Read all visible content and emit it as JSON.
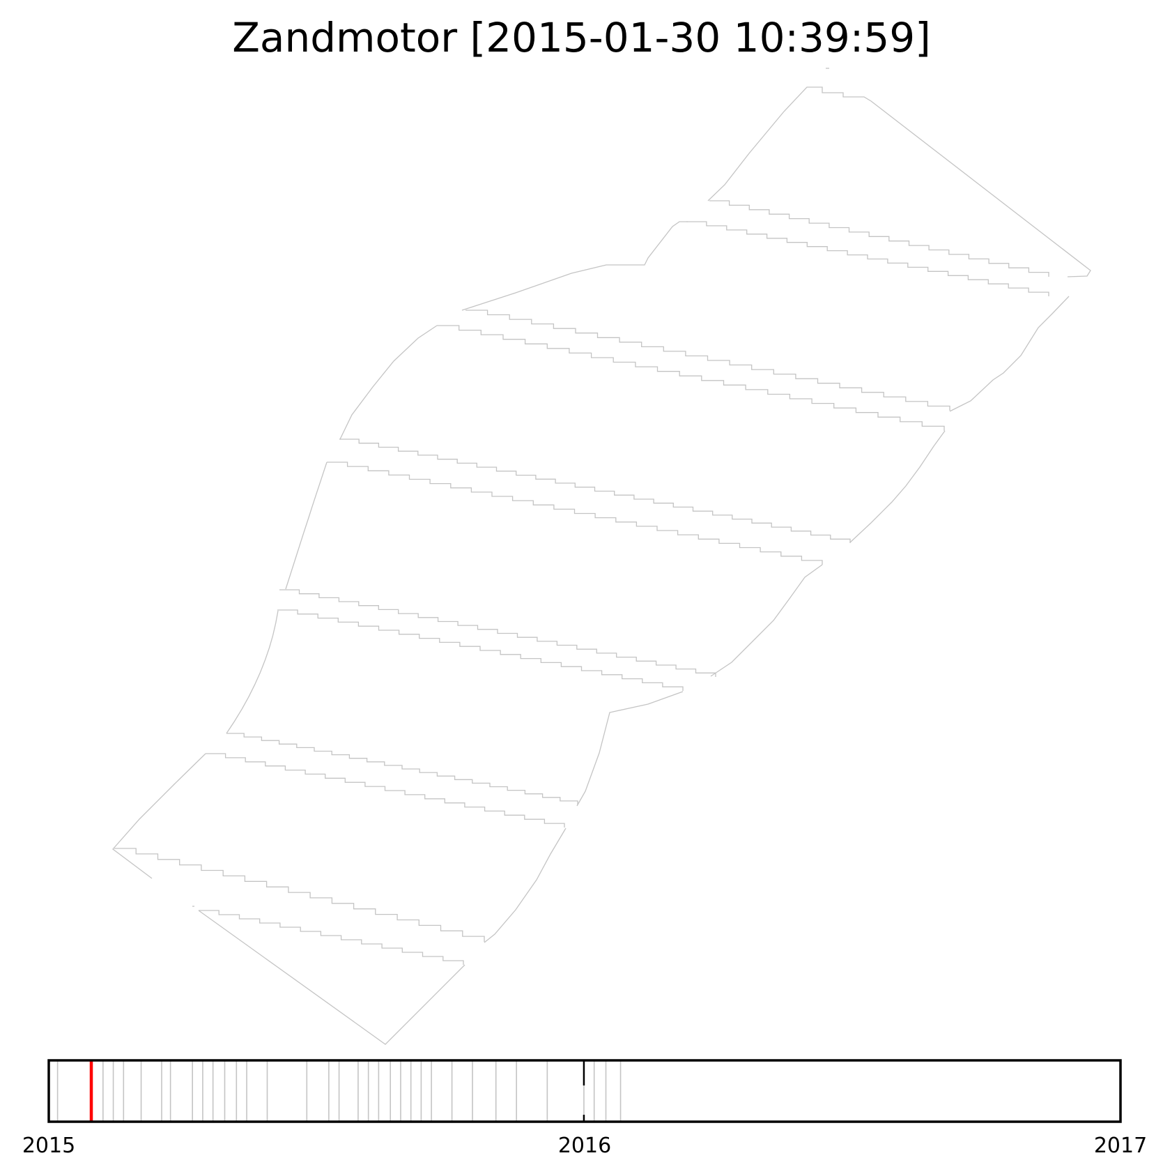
{
  "title": "Zandmotor [2015-01-30 10:39:59]",
  "colors": {
    "survey_track": "#c4c4c4",
    "timeline_tick": "#c4c4c4",
    "current_marker": "#ff0000",
    "timeline_frame": "#000000",
    "year_marker": "#000000"
  },
  "chart_data": [
    {
      "type": "line",
      "description_kind": "survey track map",
      "title": "Zandmotor [2015-01-30 10:39:59]",
      "axes_visible": false
    },
    {
      "type": "timeline",
      "x_range": [
        "2015-01-01",
        "2017-01-01"
      ],
      "tick_labels": [
        "2015",
        "2016",
        "2017"
      ],
      "survey_dates": [
        "2015-01-07",
        "2015-01-30",
        "2015-02-07",
        "2015-02-14",
        "2015-02-21",
        "2015-03-05",
        "2015-03-19",
        "2015-03-25",
        "2015-04-09",
        "2015-04-16",
        "2015-04-23",
        "2015-05-01",
        "2015-05-09",
        "2015-05-16",
        "2015-05-30",
        "2015-06-26",
        "2015-07-11",
        "2015-07-18",
        "2015-07-31",
        "2015-08-07",
        "2015-08-14",
        "2015-08-22",
        "2015-08-29",
        "2015-09-05",
        "2015-09-12",
        "2015-09-19",
        "2015-10-03",
        "2015-10-17",
        "2015-11-02",
        "2015-11-16",
        "2015-12-07",
        "2016-01-01",
        "2016-01-08",
        "2016-01-16",
        "2016-01-26"
      ],
      "current_date": "2015-01-30",
      "year_marker": "2016-01-01"
    }
  ]
}
